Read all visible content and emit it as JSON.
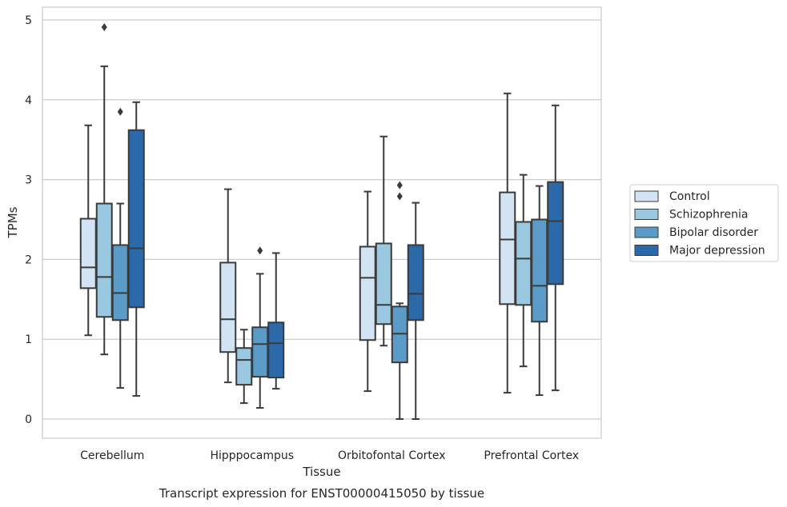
{
  "chart_data": {
    "type": "boxplot",
    "caption": "Transcript expression for ENST00000415050 by tissue",
    "xlabel": "Tissue",
    "ylabel": "TPMs",
    "ylim": [
      -0.24,
      5.16
    ],
    "yticks": [
      0,
      1,
      2,
      3,
      4,
      5
    ],
    "grid": "horizontal",
    "legend_position": "right",
    "categories": [
      "Cerebellum",
      "Hipppocampus",
      "Orbitofontal Cortex",
      "Prefrontal Cortex"
    ],
    "series": [
      {
        "name": "Control",
        "color": "#d2e3f3",
        "boxes": [
          {
            "whislo": 1.05,
            "q1": 1.64,
            "med": 1.9,
            "q3": 2.51,
            "whishi": 3.68,
            "fliers": []
          },
          {
            "whislo": 0.46,
            "q1": 0.84,
            "med": 1.25,
            "q3": 1.96,
            "whishi": 2.88,
            "fliers": []
          },
          {
            "whislo": 0.35,
            "q1": 0.99,
            "med": 1.77,
            "q3": 2.16,
            "whishi": 2.85,
            "fliers": []
          },
          {
            "whislo": 0.33,
            "q1": 1.44,
            "med": 2.25,
            "q3": 2.84,
            "whishi": 4.08,
            "fliers": []
          }
        ]
      },
      {
        "name": "Schizophrenia",
        "color": "#9ac8e0",
        "boxes": [
          {
            "whislo": 0.81,
            "q1": 1.28,
            "med": 1.78,
            "q3": 2.7,
            "whishi": 4.42,
            "fliers": [
              4.91
            ]
          },
          {
            "whislo": 0.2,
            "q1": 0.43,
            "med": 0.74,
            "q3": 0.89,
            "whishi": 1.12,
            "fliers": []
          },
          {
            "whislo": 0.92,
            "q1": 1.19,
            "med": 1.43,
            "q3": 2.2,
            "whishi": 3.54,
            "fliers": []
          },
          {
            "whislo": 0.66,
            "q1": 1.43,
            "med": 2.01,
            "q3": 2.47,
            "whishi": 3.06,
            "fliers": []
          }
        ]
      },
      {
        "name": "Bipolar disorder",
        "color": "#5b9bc8",
        "boxes": [
          {
            "whislo": 0.39,
            "q1": 1.24,
            "med": 1.58,
            "q3": 2.18,
            "whishi": 2.7,
            "fliers": [
              3.85
            ]
          },
          {
            "whislo": 0.14,
            "q1": 0.53,
            "med": 0.94,
            "q3": 1.15,
            "whishi": 1.82,
            "fliers": [
              2.11
            ]
          },
          {
            "whislo": 0.0,
            "q1": 0.71,
            "med": 1.07,
            "q3": 1.41,
            "whishi": 1.45,
            "fliers": [
              2.79,
              2.93
            ]
          },
          {
            "whislo": 0.3,
            "q1": 1.22,
            "med": 1.67,
            "q3": 2.5,
            "whishi": 2.92,
            "fliers": []
          }
        ]
      },
      {
        "name": "Major depression",
        "color": "#2c69a8",
        "boxes": [
          {
            "whislo": 0.29,
            "q1": 1.4,
            "med": 2.14,
            "q3": 3.62,
            "whishi": 3.97,
            "fliers": []
          },
          {
            "whislo": 0.38,
            "q1": 0.52,
            "med": 0.95,
            "q3": 1.21,
            "whishi": 2.08,
            "fliers": []
          },
          {
            "whislo": 0.0,
            "q1": 1.24,
            "med": 1.57,
            "q3": 2.18,
            "whishi": 2.71,
            "fliers": []
          },
          {
            "whislo": 0.36,
            "q1": 1.69,
            "med": 2.48,
            "q3": 2.97,
            "whishi": 3.93,
            "fliers": []
          }
        ]
      }
    ]
  }
}
